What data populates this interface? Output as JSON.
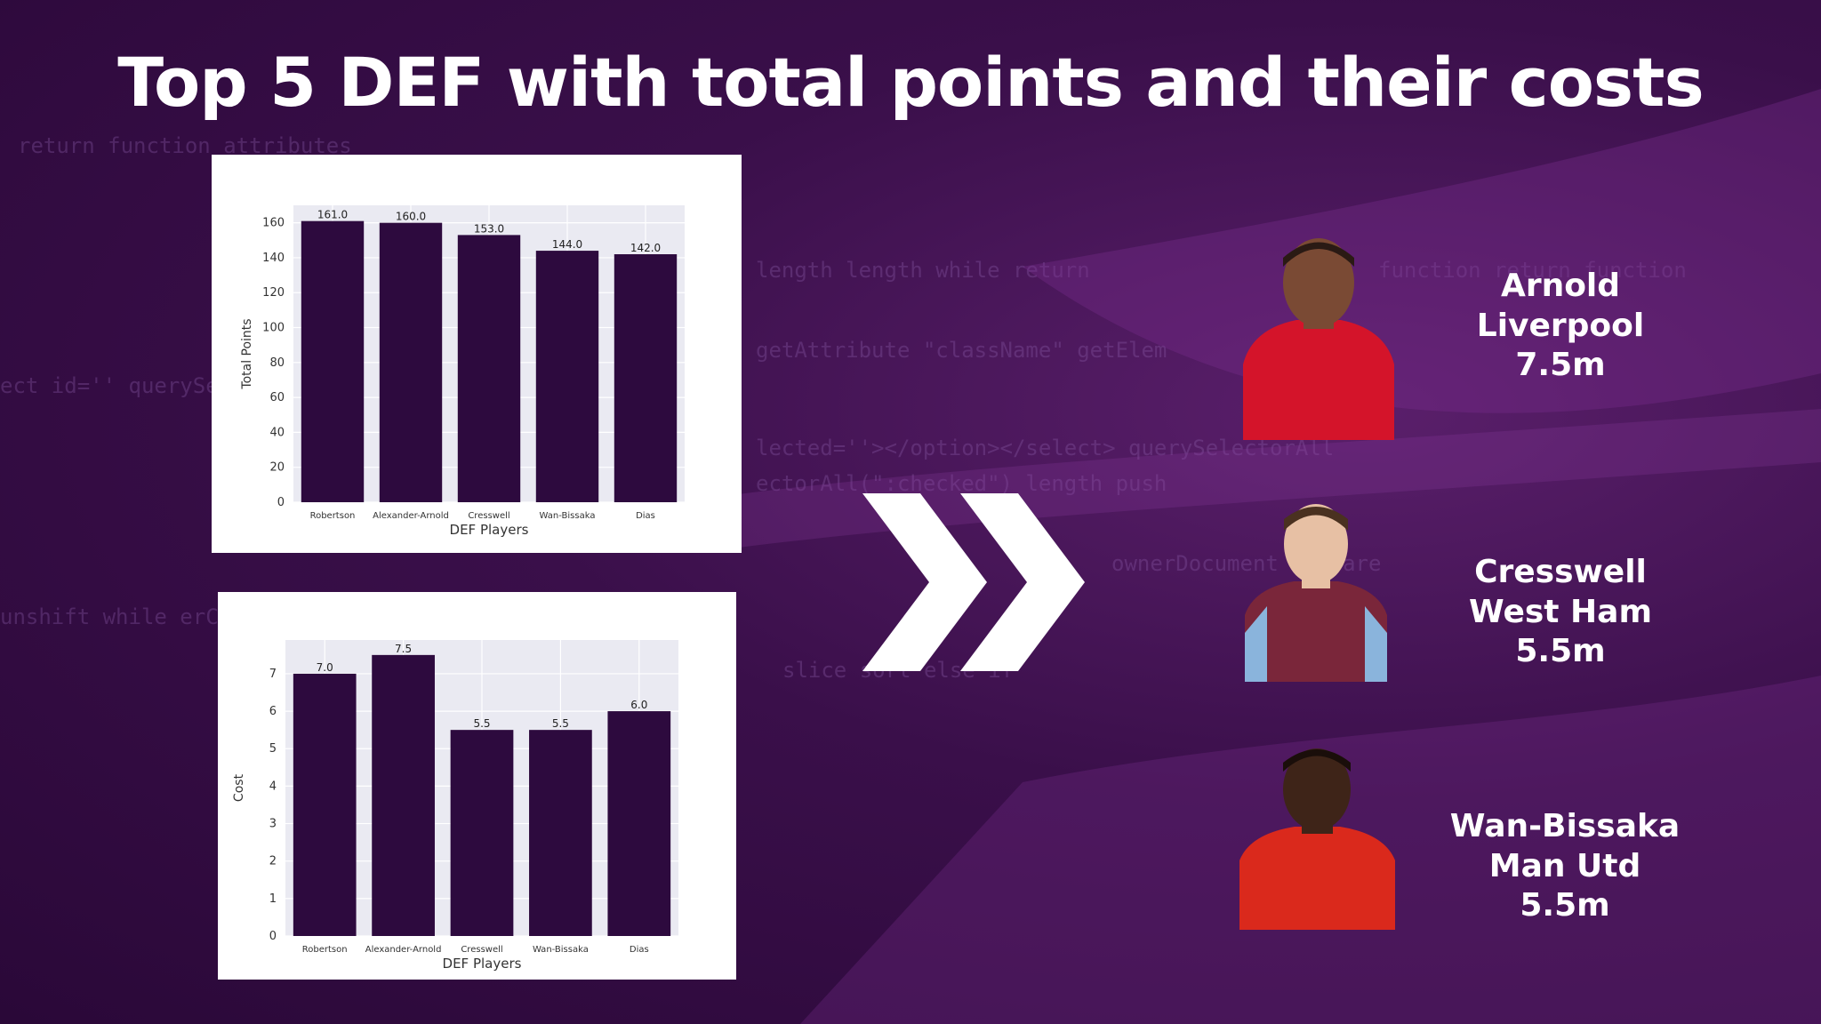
{
  "title": "Top 5 DEF with total points and their costs",
  "chart_data": [
    {
      "type": "bar",
      "categories": [
        "Robertson",
        "Alexander-Arnold",
        "Cresswell",
        "Wan-Bissaka",
        "Dias"
      ],
      "values": [
        161.0,
        160.0,
        153.0,
        144.0,
        142.0
      ],
      "value_labels": [
        "161.0",
        "160.0",
        "153.0",
        "144.0",
        "142.0"
      ],
      "xlabel": "DEF Players",
      "ylabel": "Total Points",
      "ylim": [
        0,
        170
      ],
      "yticks": [
        0,
        20,
        40,
        60,
        80,
        100,
        120,
        140,
        160
      ],
      "grid": true,
      "bar_color": "#2d0a3e"
    },
    {
      "type": "bar",
      "categories": [
        "Robertson",
        "Alexander-Arnold",
        "Cresswell",
        "Wan-Bissaka",
        "Dias"
      ],
      "values": [
        7.0,
        7.5,
        5.5,
        5.5,
        6.0
      ],
      "value_labels": [
        "7.0",
        "7.5",
        "5.5",
        "5.5",
        "6.0"
      ],
      "xlabel": "DEF Players",
      "ylabel": "Cost",
      "ylim": [
        0,
        7.9
      ],
      "yticks": [
        0,
        1,
        2,
        3,
        4,
        5,
        6,
        7
      ],
      "grid": true,
      "bar_color": "#2d0a3e"
    }
  ],
  "players": [
    {
      "name": "Arnold",
      "team": "Liverpool",
      "cost": "7.5m",
      "kit_color": "#d4142a",
      "icon": "player-portrait"
    },
    {
      "name": "Cresswell",
      "team": "West Ham",
      "cost": "5.5m",
      "kit_color": "#7a263a",
      "icon": "player-portrait"
    },
    {
      "name": "Wan-Bissaka",
      "team": "Man Utd",
      "cost": "5.5m",
      "kit_color": "#da291c",
      "icon": "player-portrait"
    }
  ],
  "colors": {
    "background": "#3a0f4a",
    "accent": "#5a1f6b",
    "chart_bg": "#eaeaf2"
  }
}
